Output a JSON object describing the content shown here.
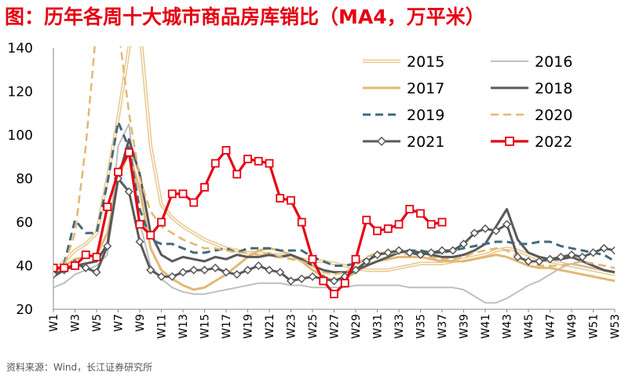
{
  "title": "图：历年各周十大城市商品房库销比（MA4，万平米）",
  "source": "资料来源：Wind，长江证券研究所",
  "chart_data": {
    "type": "line",
    "ylim": [
      20,
      140
    ],
    "yticks": [
      20,
      40,
      60,
      80,
      100,
      120,
      140
    ],
    "xtick_labels": [
      "W1",
      "W3",
      "W5",
      "W7",
      "W9",
      "W11",
      "W13",
      "W15",
      "W17",
      "W19",
      "W21",
      "W23",
      "W25",
      "W27",
      "W29",
      "W31",
      "W33",
      "W35",
      "W37",
      "W39",
      "W41",
      "W43",
      "W45",
      "W47",
      "W49",
      "W51",
      "W53"
    ],
    "legend_position": "top-right",
    "series": [
      {
        "name": "2015",
        "color": "#e8c98f",
        "dash": "solid",
        "width": 1.8,
        "marker": "none",
        "double": true,
        "values": [
          38,
          42,
          47,
          50,
          55,
          80,
          108,
          140,
          150,
          95,
          68,
          62,
          58,
          55,
          52,
          50,
          48,
          47,
          46,
          46,
          45,
          45,
          44,
          43,
          42,
          42,
          41,
          40,
          39,
          38,
          38,
          38,
          39,
          40,
          41,
          41,
          41,
          42,
          43,
          44,
          45,
          47,
          48,
          47,
          45,
          43,
          42,
          41,
          40,
          39,
          38,
          37,
          36
        ]
      },
      {
        "name": "2016",
        "color": "#bfbfbf",
        "dash": "solid",
        "width": 2,
        "marker": "none",
        "values": [
          30,
          32,
          36,
          38,
          40,
          45,
          95,
          105,
          60,
          40,
          34,
          30,
          28,
          27,
          27,
          28,
          29,
          30,
          31,
          32,
          32,
          32,
          31,
          31,
          30,
          30,
          30,
          30,
          31,
          31,
          31,
          31,
          31,
          30,
          30,
          30,
          30,
          30,
          29,
          26,
          23,
          23,
          25,
          28,
          31,
          33,
          36,
          39,
          41,
          40,
          39,
          38,
          37
        ]
      },
      {
        "name": "2017",
        "color": "#e2b872",
        "dash": "solid",
        "width": 3,
        "marker": "none",
        "values": [
          37,
          40,
          43,
          44,
          45,
          55,
          80,
          92,
          75,
          48,
          38,
          34,
          31,
          29,
          30,
          33,
          36,
          40,
          44,
          47,
          48,
          47,
          45,
          42,
          38,
          35,
          33,
          34,
          37,
          40,
          42,
          43,
          44,
          44,
          44,
          43,
          42,
          42,
          42,
          43,
          44,
          45,
          44,
          42,
          40,
          39,
          39,
          38,
          37,
          36,
          35,
          34,
          33
        ]
      },
      {
        "name": "2018",
        "color": "#595959",
        "dash": "solid",
        "width": 3,
        "marker": "none",
        "values": [
          35,
          38,
          40,
          41,
          42,
          50,
          80,
          98,
          82,
          55,
          45,
          42,
          44,
          43,
          42,
          44,
          43,
          45,
          44,
          44,
          45,
          44,
          45,
          43,
          40,
          38,
          37,
          37,
          38,
          40,
          42,
          44,
          46,
          47,
          46,
          45,
          44,
          44,
          45,
          47,
          50,
          58,
          66,
          52,
          46,
          44,
          43,
          43,
          44,
          42,
          40,
          38,
          37
        ]
      },
      {
        "name": "2019",
        "color": "#44697d",
        "dash": "dash",
        "width": 3,
        "marker": "none",
        "values": [
          37,
          41,
          61,
          55,
          55,
          78,
          106,
          94,
          66,
          52,
          50,
          50,
          48,
          46,
          46,
          47,
          48,
          46,
          48,
          48,
          48,
          47,
          47,
          47,
          44,
          42,
          40,
          40,
          41,
          43,
          45,
          46,
          47,
          47,
          47,
          46,
          46,
          47,
          48,
          49,
          50,
          51,
          51,
          50,
          50,
          51,
          51,
          49,
          48,
          47,
          46,
          45,
          42
        ]
      },
      {
        "name": "2020",
        "color": "#e2b872",
        "dash": "dash",
        "width": 2.5,
        "marker": "none",
        "values": [
          39,
          40,
          55,
          95,
          150,
          150,
          150,
          110,
          80,
          65,
          58,
          55,
          52,
          50,
          48,
          48,
          47,
          46,
          46,
          45,
          46,
          44,
          43,
          42,
          40,
          37,
          36,
          37,
          40,
          44,
          46,
          46,
          46,
          45,
          45,
          44,
          43,
          43,
          44,
          46,
          47,
          48,
          47,
          44,
          42,
          40,
          40,
          40,
          41,
          42,
          41,
          40,
          39
        ]
      },
      {
        "name": "2021",
        "color": "#595959",
        "dash": "solid",
        "width": 3,
        "marker": "diamond",
        "values": [
          36,
          38,
          41,
          39,
          37,
          49,
          80,
          74,
          51,
          38,
          35,
          35,
          37,
          38,
          38,
          39,
          37,
          36,
          38,
          40,
          38,
          37,
          33,
          34,
          35,
          34,
          33,
          35,
          38,
          42,
          45,
          46,
          47,
          46,
          45,
          46,
          47,
          47,
          50,
          55,
          57,
          56,
          59,
          44,
          42,
          42,
          43,
          44,
          45,
          44,
          46,
          48,
          47
        ]
      },
      {
        "name": "2022",
        "color": "#e60012",
        "dash": "solid",
        "width": 3.2,
        "marker": "square",
        "values": [
          39,
          39,
          40,
          45,
          44,
          67,
          83,
          92,
          59,
          54,
          60,
          73,
          73,
          69,
          76,
          87,
          93,
          82,
          89,
          88,
          87,
          71,
          70,
          60,
          43,
          33,
          27,
          32,
          43,
          61,
          56,
          57,
          59,
          66,
          64,
          59,
          60
        ]
      }
    ]
  }
}
